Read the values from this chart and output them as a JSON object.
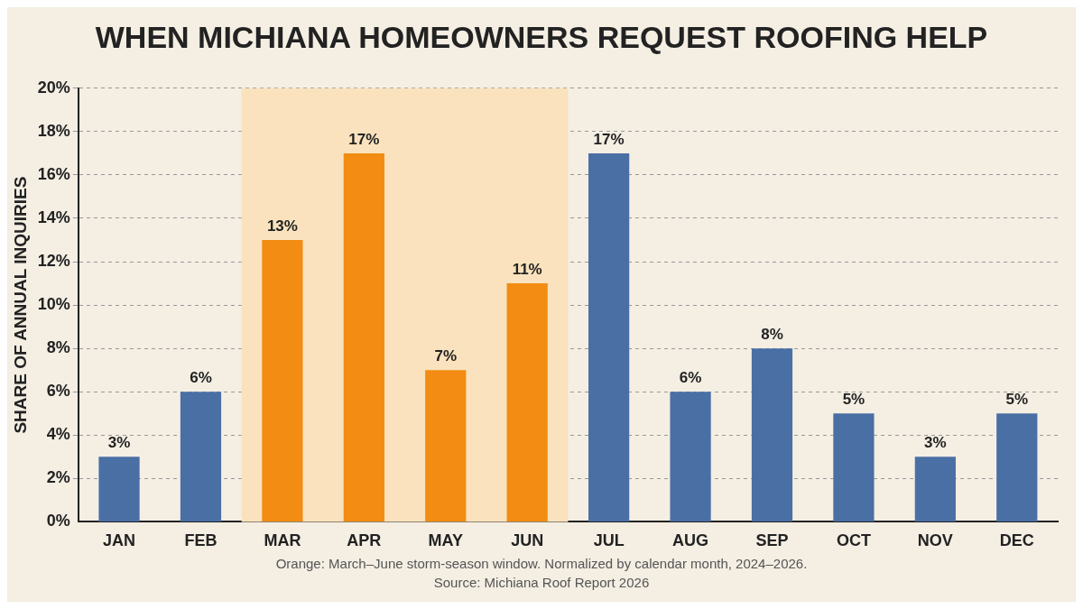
{
  "chart_data": {
    "type": "bar",
    "title": "WHEN MICHIANA HOMEOWNERS REQUEST ROOFING HELP",
    "ylabel": "SHARE OF ANNUAL INQUIRIES",
    "categories": [
      "JAN",
      "FEB",
      "MAR",
      "APR",
      "MAY",
      "JUN",
      "JUL",
      "AUG",
      "SEP",
      "OCT",
      "NOV",
      "DEC"
    ],
    "values": [
      3,
      6,
      13,
      17,
      7,
      11,
      17,
      6,
      8,
      5,
      3,
      5
    ],
    "colors": [
      "#4a6fa5",
      "#4a6fa5",
      "#f28c12",
      "#f28c12",
      "#f28c12",
      "#f28c12",
      "#4a6fa5",
      "#4a6fa5",
      "#4a6fa5",
      "#4a6fa5",
      "#4a6fa5",
      "#4a6fa5"
    ],
    "ylim": [
      0,
      20
    ],
    "yticks": [
      {
        "value": 0,
        "label": "0%"
      },
      {
        "value": 2,
        "label": "2%"
      },
      {
        "value": 4,
        "label": "4%"
      },
      {
        "value": 6,
        "label": "6%"
      },
      {
        "value": 8,
        "label": "8%"
      },
      {
        "value": 10,
        "label": "10%"
      },
      {
        "value": 12,
        "label": "12%"
      },
      {
        "value": 14,
        "label": "14%"
      },
      {
        "value": 16,
        "label": "16%"
      },
      {
        "value": 18,
        "label": "18%"
      },
      {
        "value": 20,
        "label": "20%"
      }
    ],
    "value_labels": [
      "3%",
      "6%",
      "13%",
      "17%",
      "7%",
      "11%",
      "17%",
      "6%",
      "8%",
      "5%",
      "3%",
      "5%"
    ],
    "bands": [
      {
        "axis": "x",
        "from": "MAR",
        "to": "JUN",
        "color": "#f9e2bd"
      }
    ],
    "grid": "y",
    "legend": false,
    "annotations": [
      "Orange: March–June storm-season window. Normalized by calendar month, 2024–2026.",
      "Source: Michiana Roof Report 2026"
    ]
  }
}
